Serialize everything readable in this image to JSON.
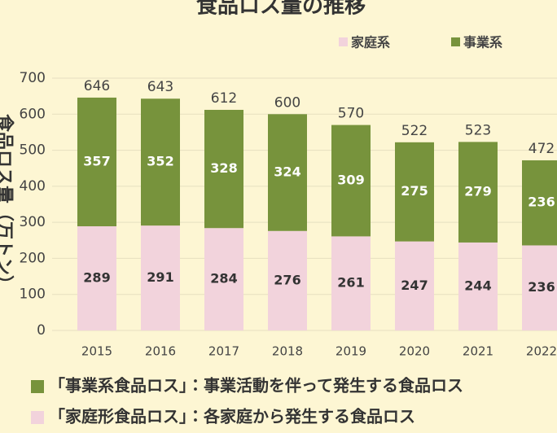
{
  "chart_data": {
    "type": "stacked-bar",
    "title": "食品ロス量の推移",
    "ylabel": "食品ロス量（万トン）",
    "categories": [
      "2015",
      "2016",
      "2017",
      "2018",
      "2019",
      "2020",
      "2021",
      "2022"
    ],
    "series": [
      {
        "name": "家庭系",
        "color": "#f2d3dc",
        "values": [
          289,
          291,
          284,
          276,
          261,
          247,
          244,
          236
        ]
      },
      {
        "name": "事業系",
        "color": "#77933c",
        "values": [
          357,
          352,
          328,
          324,
          309,
          275,
          279,
          236
        ]
      }
    ],
    "totals": [
      646,
      643,
      612,
      600,
      570,
      522,
      523,
      472
    ],
    "ylim": [
      0,
      700
    ],
    "yticks": [
      0,
      100,
      200,
      300,
      400,
      500,
      600,
      700
    ],
    "grid": true,
    "notes": [
      {
        "color": "#77933c",
        "text": "「事業系食品ロス」：事業活動を伴って発生する食品ロス"
      },
      {
        "color": "#f2d3dc",
        "text": "「家庭形食品ロス」：各家庭から発生する食品ロス"
      }
    ]
  }
}
